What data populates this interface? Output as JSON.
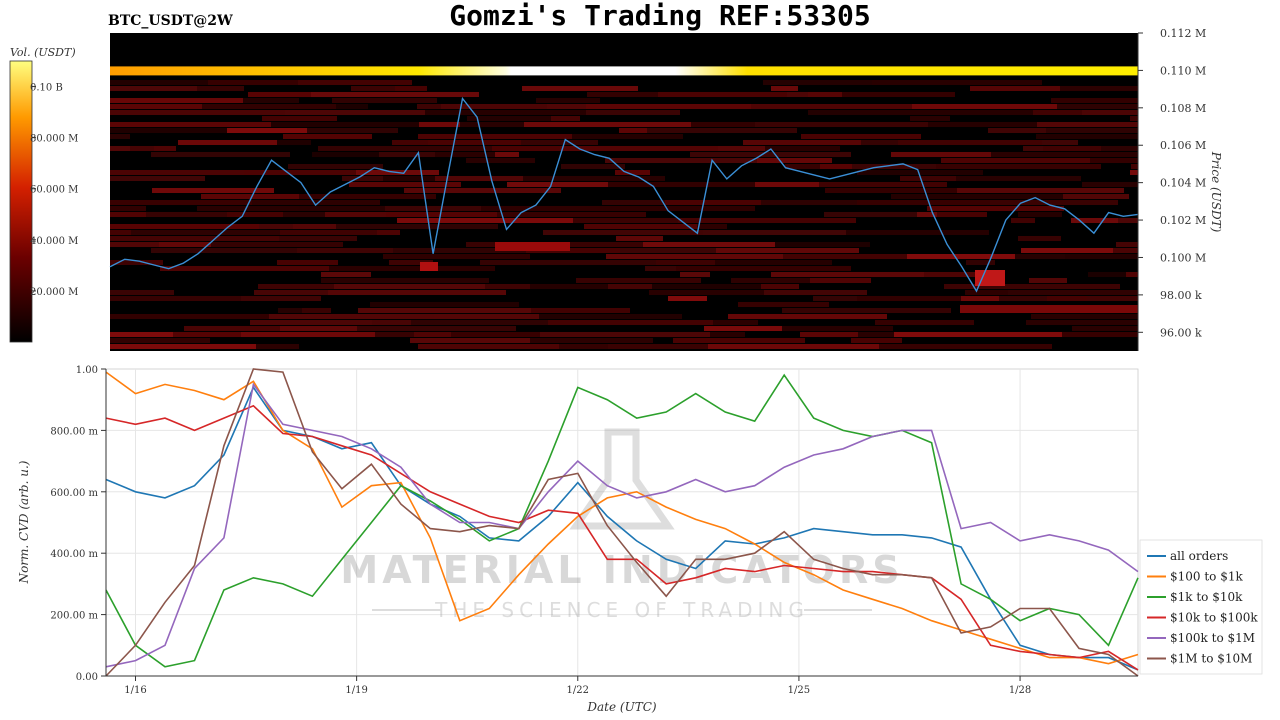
{
  "header": {
    "title": "Gomzi's Trading REF:53305",
    "pair": "BTC_USDT@2W"
  },
  "watermark": {
    "line1": "MATERIAL INDICATORS",
    "line2": "THE SCIENCE OF TRADING"
  },
  "chart_data": [
    {
      "type": "heatmap",
      "title": "BTC_USDT@2W",
      "ylabel": "Price (USDT)",
      "ylim": [
        95000,
        112000
      ],
      "yticks": [
        {
          "v": 96000,
          "label": "96.00 k"
        },
        {
          "v": 98000,
          "label": "98.00 k"
        },
        {
          "v": 100000,
          "label": "0.100 M"
        },
        {
          "v": 102000,
          "label": "0.102 M"
        },
        {
          "v": 104000,
          "label": "0.104 M"
        },
        {
          "v": 106000,
          "label": "0.106 M"
        },
        {
          "v": 108000,
          "label": "0.108 M"
        },
        {
          "v": 110000,
          "label": "0.110 M"
        },
        {
          "v": 112000,
          "label": "0.112 M"
        }
      ],
      "colorbar": {
        "label": "Vol. (USDT)",
        "range": [
          0,
          110000000
        ],
        "ticks": [
          {
            "v": 20000000,
            "label": "20.000 M"
          },
          {
            "v": 40000000,
            "label": "40.000 M"
          },
          {
            "v": 60000000,
            "label": "60.000 M"
          },
          {
            "v": 80000000,
            "label": "80.000 M"
          },
          {
            "v": 100000000,
            "label": "0.10 B"
          }
        ]
      },
      "xlim": [
        15.6,
        29.6
      ],
      "price_series": {
        "x": [
          15.6,
          15.8,
          16.0,
          16.2,
          16.4,
          16.6,
          16.8,
          17.0,
          17.2,
          17.4,
          17.6,
          17.8,
          18.0,
          18.2,
          18.4,
          18.6,
          18.8,
          19.0,
          19.2,
          19.4,
          19.6,
          19.8,
          20.0,
          20.2,
          20.4,
          20.6,
          20.8,
          21.0,
          21.2,
          21.4,
          21.6,
          21.8,
          22.0,
          22.2,
          22.4,
          22.6,
          22.8,
          23.0,
          23.2,
          23.4,
          23.6,
          23.8,
          24.0,
          24.2,
          24.4,
          24.6,
          24.8,
          25.0,
          25.2,
          25.4,
          25.6,
          25.8,
          26.0,
          26.2,
          26.4,
          26.6,
          26.8,
          27.0,
          27.2,
          27.4,
          27.6,
          27.8,
          28.0,
          28.2,
          28.4,
          28.6,
          28.8,
          29.0,
          29.2,
          29.4,
          29.6
        ],
        "y": [
          99500,
          99900,
          99800,
          99600,
          99400,
          99700,
          100200,
          100900,
          101600,
          102200,
          103800,
          105200,
          104600,
          104000,
          102800,
          103500,
          103900,
          104300,
          104800,
          104600,
          104500,
          105600,
          100200,
          104400,
          108500,
          107500,
          104100,
          101500,
          102400,
          102800,
          103800,
          106300,
          105800,
          105500,
          105300,
          104600,
          104300,
          103800,
          102500,
          101900,
          101300,
          105200,
          104200,
          104900,
          105300,
          105800,
          104800,
          104600,
          104400,
          104200,
          104400,
          104600,
          104800,
          104900,
          105000,
          104700,
          102400,
          100700,
          99500,
          98200,
          100000,
          102000,
          102900,
          103200,
          102800,
          102600,
          102000,
          101300,
          102400,
          102200,
          102300
        ]
      },
      "wall": {
        "price": 110000,
        "label": "0.110 M"
      }
    },
    {
      "type": "line",
      "xlabel": "Date (UTC)",
      "ylabel": "Norm. CVD (arb. u.)",
      "ylim": [
        0,
        1
      ],
      "xlim": [
        15.6,
        29.6
      ],
      "xticks": [
        {
          "v": 16,
          "label": "1/16"
        },
        {
          "v": 19,
          "label": "1/19"
        },
        {
          "v": 22,
          "label": "1/22"
        },
        {
          "v": 25,
          "label": "1/25"
        },
        {
          "v": 28,
          "label": "1/28"
        }
      ],
      "yticks": [
        {
          "v": 0,
          "label": "0.00"
        },
        {
          "v": 0.2,
          "label": "200.00 m"
        },
        {
          "v": 0.4,
          "label": "400.00 m"
        },
        {
          "v": 0.6,
          "label": "600.00 m"
        },
        {
          "v": 0.8,
          "label": "800.00 m"
        },
        {
          "v": 1.0,
          "label": "1.00"
        }
      ],
      "x": [
        15.6,
        16.0,
        16.4,
        16.8,
        17.2,
        17.6,
        18.0,
        18.4,
        18.8,
        19.2,
        19.6,
        20.0,
        20.4,
        20.8,
        21.2,
        21.6,
        22.0,
        22.4,
        22.8,
        23.2,
        23.6,
        24.0,
        24.4,
        24.8,
        25.2,
        25.6,
        26.0,
        26.4,
        26.8,
        27.2,
        27.6,
        28.0,
        28.4,
        28.8,
        29.2,
        29.6
      ],
      "legend_position": "bottom-right",
      "series": [
        {
          "name": "all orders",
          "color": "#1f77b4",
          "values": [
            0.64,
            0.6,
            0.58,
            0.62,
            0.72,
            0.94,
            0.8,
            0.78,
            0.74,
            0.76,
            0.62,
            0.56,
            0.52,
            0.45,
            0.44,
            0.52,
            0.63,
            0.52,
            0.44,
            0.38,
            0.35,
            0.44,
            0.43,
            0.45,
            0.48,
            0.47,
            0.46,
            0.46,
            0.45,
            0.42,
            0.25,
            0.1,
            0.07,
            0.06,
            0.06,
            0.02
          ]
        },
        {
          "name": "$100 to $1k",
          "color": "#ff7f0e",
          "values": [
            0.99,
            0.92,
            0.95,
            0.93,
            0.9,
            0.96,
            0.8,
            0.74,
            0.55,
            0.62,
            0.63,
            0.45,
            0.18,
            0.22,
            0.33,
            0.43,
            0.52,
            0.58,
            0.6,
            0.55,
            0.51,
            0.48,
            0.43,
            0.37,
            0.33,
            0.28,
            0.25,
            0.22,
            0.18,
            0.15,
            0.12,
            0.09,
            0.06,
            0.06,
            0.04,
            0.07
          ]
        },
        {
          "name": "$1k to $10k",
          "color": "#2ca02c",
          "values": [
            0.28,
            0.1,
            0.03,
            0.05,
            0.28,
            0.32,
            0.3,
            0.26,
            0.38,
            0.5,
            0.62,
            0.57,
            0.51,
            0.44,
            0.48,
            0.7,
            0.94,
            0.9,
            0.84,
            0.86,
            0.92,
            0.86,
            0.83,
            0.98,
            0.84,
            0.8,
            0.78,
            0.8,
            0.76,
            0.3,
            0.25,
            0.18,
            0.22,
            0.2,
            0.1,
            0.32
          ]
        },
        {
          "name": "$10k to $100k",
          "color": "#d62728",
          "values": [
            0.84,
            0.82,
            0.84,
            0.8,
            0.84,
            0.88,
            0.79,
            0.78,
            0.75,
            0.72,
            0.66,
            0.6,
            0.56,
            0.52,
            0.5,
            0.54,
            0.53,
            0.38,
            0.38,
            0.3,
            0.32,
            0.35,
            0.34,
            0.36,
            0.35,
            0.34,
            0.34,
            0.33,
            0.32,
            0.25,
            0.1,
            0.08,
            0.07,
            0.06,
            0.08,
            0.02
          ]
        },
        {
          "name": "$100k to $1M",
          "color": "#9467bd",
          "values": [
            0.03,
            0.05,
            0.1,
            0.35,
            0.45,
            0.95,
            0.82,
            0.8,
            0.78,
            0.74,
            0.68,
            0.56,
            0.5,
            0.5,
            0.48,
            0.6,
            0.7,
            0.62,
            0.58,
            0.6,
            0.64,
            0.6,
            0.62,
            0.68,
            0.72,
            0.74,
            0.78,
            0.8,
            0.8,
            0.48,
            0.5,
            0.44,
            0.46,
            0.44,
            0.41,
            0.34
          ]
        },
        {
          "name": "$1M to $10M",
          "color": "#8c564b",
          "values": [
            0.0,
            0.1,
            0.24,
            0.36,
            0.75,
            1.0,
            0.99,
            0.73,
            0.61,
            0.69,
            0.56,
            0.48,
            0.47,
            0.49,
            0.48,
            0.64,
            0.66,
            0.49,
            0.37,
            0.26,
            0.38,
            0.38,
            0.4,
            0.47,
            0.38,
            0.35,
            0.33,
            0.33,
            0.32,
            0.14,
            0.16,
            0.22,
            0.22,
            0.09,
            0.07,
            0.0
          ]
        }
      ]
    }
  ]
}
